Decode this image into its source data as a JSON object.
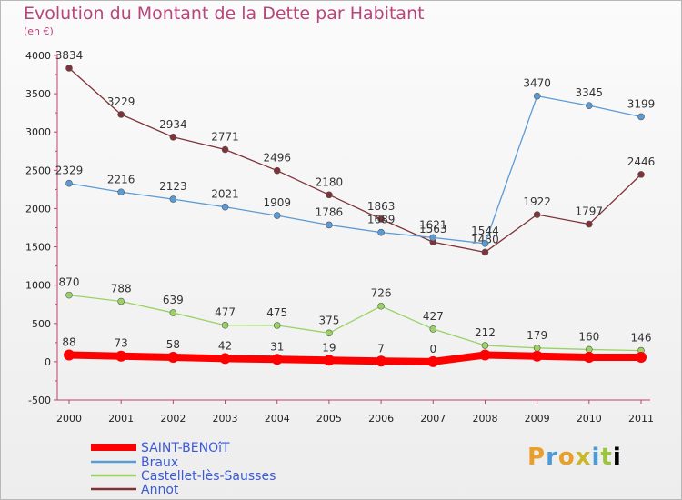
{
  "chart_data": {
    "type": "line",
    "title": "Evolution du Montant de la Dette par Habitant",
    "subtitle": "(en €)",
    "x": [
      "2000",
      "2001",
      "2002",
      "2003",
      "2004",
      "2005",
      "2006",
      "2007",
      "2008",
      "2009",
      "2010",
      "2011"
    ],
    "ylim": [
      -500,
      4000
    ],
    "yticks": [
      "-500",
      "0",
      "500",
      "1000",
      "1500",
      "2000",
      "2500",
      "3000",
      "3500",
      "4000"
    ],
    "grid": false,
    "legend_position": "bottom-left",
    "series": [
      {
        "name": "SAINT-BENOîT",
        "color": "#ff0000",
        "values": [
          88,
          73,
          58,
          42,
          31,
          19,
          7,
          0,
          88,
          73,
          58,
          58
        ],
        "labels": [
          "88",
          "73",
          "58",
          "42",
          "31",
          "19",
          "7",
          "0",
          "",
          "",
          "",
          ""
        ]
      },
      {
        "name": "Braux",
        "color": "#5b9bd5",
        "values": [
          2329,
          2216,
          2123,
          2021,
          1909,
          1786,
          1689,
          1621,
          1544,
          3470,
          3345,
          3199
        ],
        "labels": [
          "2329",
          "2216",
          "2123",
          "2021",
          "1909",
          "1786",
          "1689",
          "1621",
          "1544",
          "3470",
          "3345",
          "3199"
        ]
      },
      {
        "name": "Castellet-lès-Sausses",
        "color": "#99d364",
        "values": [
          870,
          788,
          639,
          477,
          475,
          375,
          726,
          427,
          212,
          179,
          160,
          146
        ],
        "labels": [
          "870",
          "788",
          "639",
          "477",
          "475",
          "375",
          "726",
          "427",
          "212",
          "179",
          "160",
          "146"
        ]
      },
      {
        "name": "Annot",
        "color": "#7f3338",
        "values": [
          3834,
          3229,
          2934,
          2771,
          2496,
          2180,
          1863,
          1563,
          1430,
          1922,
          1797,
          2446
        ],
        "labels": [
          "3834",
          "3229",
          "2934",
          "2771",
          "2496",
          "2180",
          "1863",
          "1563",
          "1430",
          "1922",
          "1797",
          "2446"
        ]
      }
    ]
  },
  "logo": {
    "letters": [
      "P",
      "r",
      "o",
      "x",
      "i",
      "t",
      "i"
    ]
  }
}
